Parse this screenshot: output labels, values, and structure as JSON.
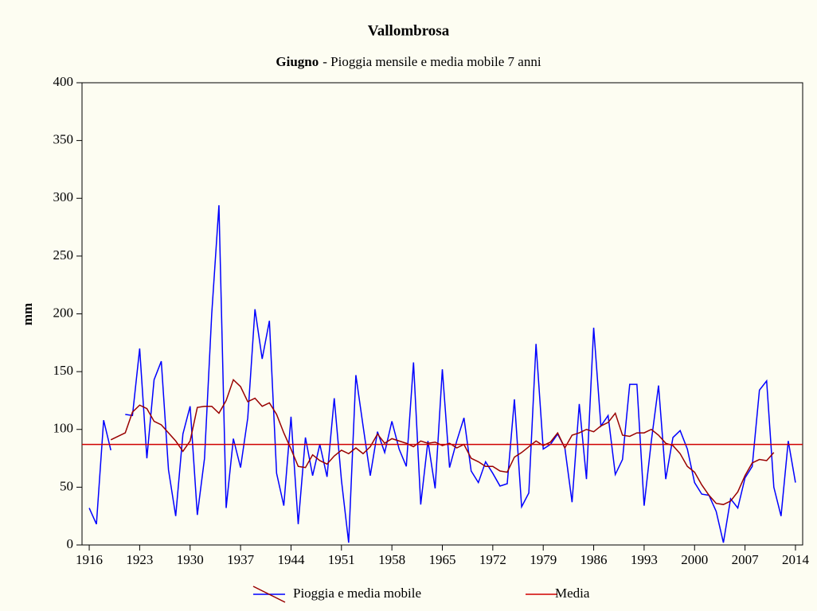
{
  "chart_data": {
    "type": "line",
    "title": "Vallombrosa",
    "subtitle": {
      "bold": "Giugno",
      "text": "- Pioggia mensile e media mobile 7 anni"
    },
    "ylabel": "mm",
    "x": [
      1916,
      1917,
      1918,
      1919,
      1920,
      1921,
      1922,
      1923,
      1924,
      1925,
      1926,
      1927,
      1928,
      1929,
      1930,
      1931,
      1932,
      1933,
      1934,
      1935,
      1936,
      1937,
      1938,
      1939,
      1940,
      1941,
      1942,
      1943,
      1944,
      1945,
      1946,
      1947,
      1948,
      1949,
      1950,
      1951,
      1952,
      1953,
      1954,
      1955,
      1956,
      1957,
      1958,
      1959,
      1960,
      1961,
      1962,
      1963,
      1964,
      1965,
      1966,
      1967,
      1968,
      1969,
      1970,
      1971,
      1972,
      1973,
      1974,
      1975,
      1976,
      1977,
      1978,
      1979,
      1980,
      1981,
      1982,
      1983,
      1984,
      1985,
      1986,
      1987,
      1988,
      1989,
      1990,
      1991,
      1992,
      1993,
      1994,
      1995,
      1996,
      1997,
      1998,
      1999,
      2000,
      2001,
      2002,
      2003,
      2004,
      2005,
      2006,
      2007,
      2008,
      2009,
      2010,
      2011,
      2012,
      2013,
      2014
    ],
    "series": [
      {
        "name": "Pioggia e media mobile",
        "color": "#0000ff",
        "values": [
          32,
          18,
          108,
          82,
          null,
          113,
          112,
          170,
          75,
          143,
          159,
          65,
          25,
          96,
          120,
          26,
          75,
          200,
          294,
          32,
          92,
          67,
          110,
          204,
          161,
          194,
          62,
          34,
          111,
          18,
          93,
          60,
          87,
          59,
          127,
          56,
          2,
          147,
          103,
          60,
          98,
          80,
          107,
          83,
          68,
          158,
          35,
          90,
          49,
          152,
          67,
          90,
          110,
          64,
          54,
          72,
          62,
          51,
          53,
          126,
          33,
          45,
          174,
          83,
          87,
          96,
          84,
          37,
          122,
          57,
          188,
          103,
          112,
          61,
          74,
          139,
          139,
          34,
          90,
          138,
          57,
          93,
          99,
          83,
          54,
          44,
          43,
          29,
          2,
          40,
          32,
          58,
          68,
          134,
          142,
          50,
          25,
          90,
          54
        ]
      },
      {
        "color": "#990000",
        "values": [
          null,
          null,
          null,
          91,
          94,
          97,
          115,
          121,
          118,
          107,
          104,
          97,
          90,
          81,
          90,
          119,
          120,
          120,
          114,
          125,
          143,
          137,
          124,
          127,
          120,
          123,
          113,
          97,
          83,
          68,
          67,
          78,
          73,
          70,
          77,
          82,
          79,
          84,
          79,
          85,
          96,
          88,
          92,
          90,
          88,
          85,
          90,
          88,
          89,
          86,
          88,
          84,
          87,
          75,
          72,
          68,
          68,
          64,
          63,
          76,
          80,
          85,
          90,
          86,
          89,
          97,
          84,
          95,
          97,
          100,
          98,
          103,
          106,
          114,
          95,
          94,
          97,
          97,
          100,
          95,
          88,
          86,
          79,
          68,
          63,
          52,
          43,
          36,
          35,
          38,
          46,
          60,
          71,
          74,
          73,
          80,
          null,
          null,
          null
        ]
      },
      {
        "name": "Media",
        "color": "#d00000",
        "value": 87
      }
    ],
    "xlim": [
      1915,
      2015
    ],
    "xticks": [
      1916,
      1923,
      1930,
      1937,
      1944,
      1951,
      1958,
      1965,
      1972,
      1979,
      1986,
      1993,
      2000,
      2007,
      2014
    ],
    "ylim": [
      0,
      400
    ],
    "yticks": [
      0,
      50,
      100,
      150,
      200,
      250,
      300,
      350,
      400
    ]
  }
}
